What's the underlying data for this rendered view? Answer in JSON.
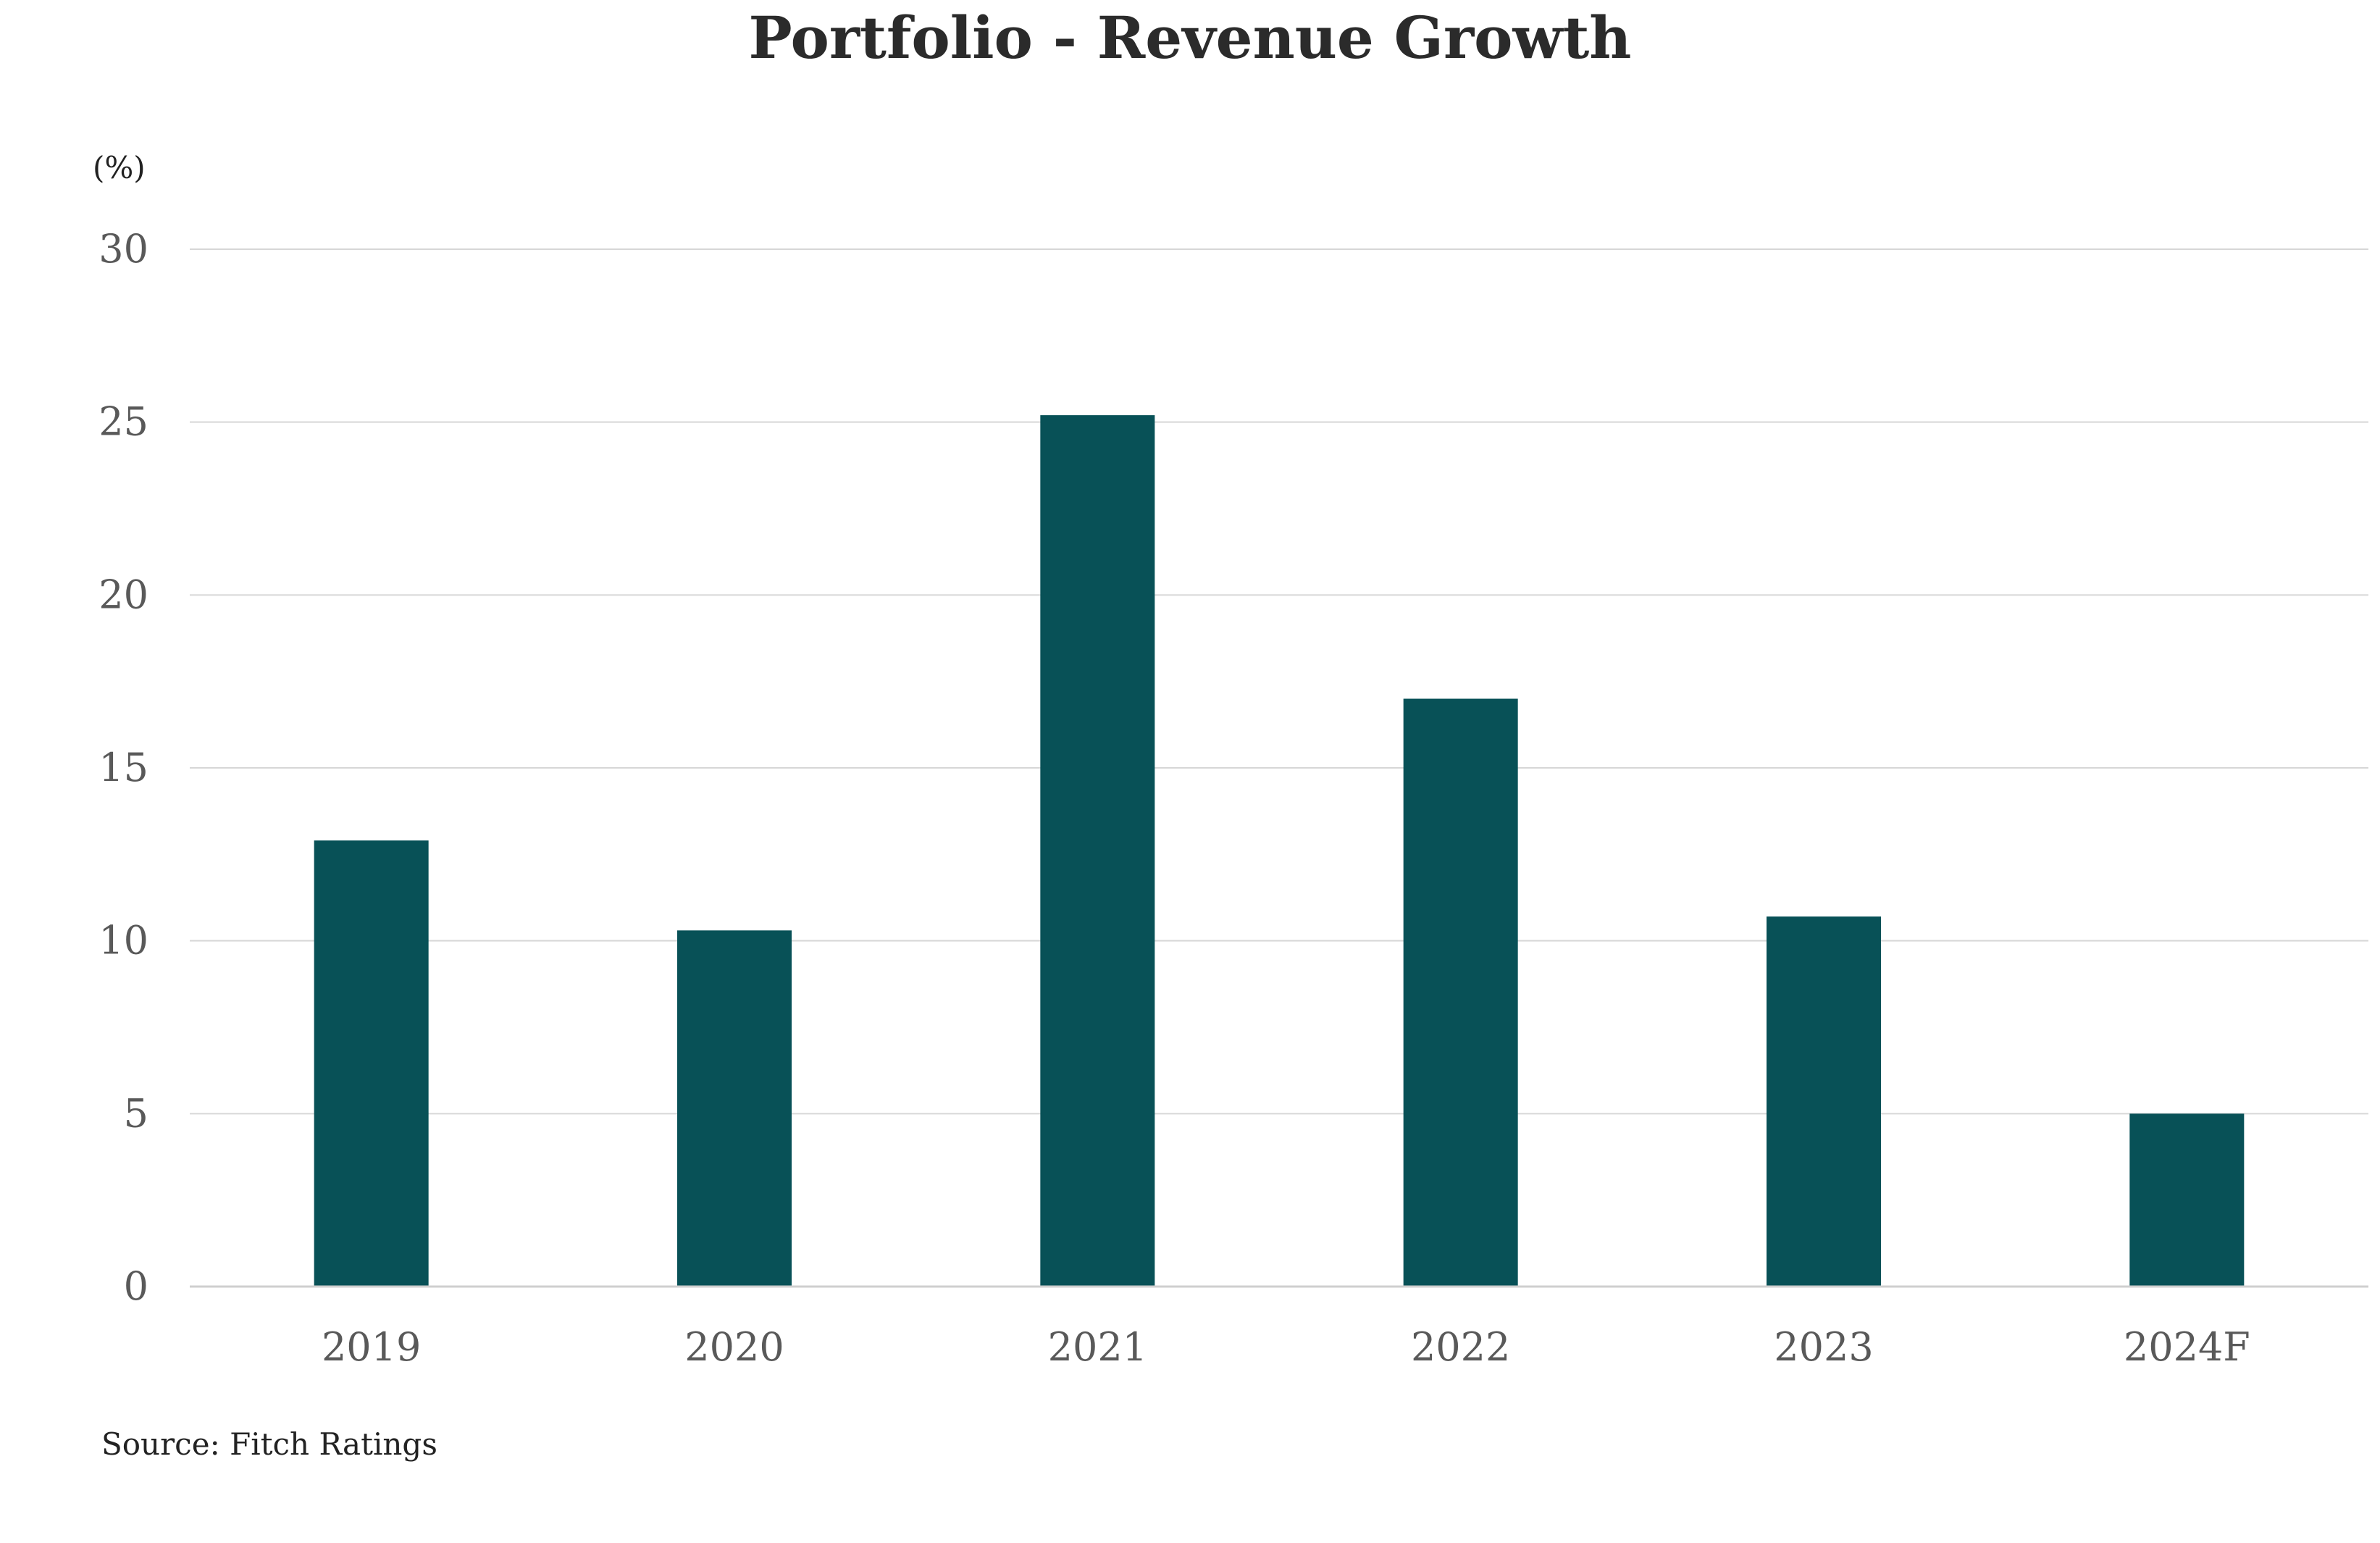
{
  "chart_data": {
    "type": "bar",
    "title": "Portfolio - Revenue Growth",
    "ylabel": "(%)",
    "xlabel": "",
    "categories": [
      "2019",
      "2020",
      "2021",
      "2022",
      "2023",
      "2024F"
    ],
    "values": [
      12.9,
      10.3,
      25.2,
      17.0,
      10.7,
      5.0
    ],
    "ylim": [
      0,
      30
    ],
    "yticks": [
      "0",
      "5",
      "10",
      "15",
      "20",
      "25",
      "30"
    ],
    "grid": true,
    "legend": "none",
    "source": "Source: Fitch Ratings",
    "colors": {
      "bar": "#085157",
      "grid": "#d7d7d7",
      "title": "#2b2b2b",
      "tick": "#595959",
      "text": "#222222"
    }
  }
}
